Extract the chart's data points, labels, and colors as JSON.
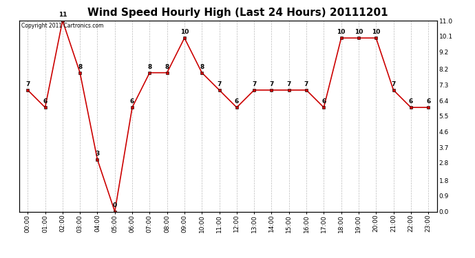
{
  "title": "Wind Speed Hourly High (Last 24 Hours) 20111201",
  "copyright": "Copyright 2011 Cartronics.com",
  "hours": [
    "00:00",
    "01:00",
    "02:00",
    "03:00",
    "04:00",
    "05:00",
    "06:00",
    "07:00",
    "08:00",
    "09:00",
    "10:00",
    "11:00",
    "12:00",
    "13:00",
    "14:00",
    "15:00",
    "16:00",
    "17:00",
    "18:00",
    "19:00",
    "20:00",
    "21:00",
    "22:00",
    "23:00"
  ],
  "values": [
    7,
    6,
    11,
    8,
    3,
    0,
    6,
    8,
    8,
    10,
    8,
    7,
    6,
    7,
    7,
    7,
    7,
    6,
    10,
    10,
    10,
    7,
    6,
    6
  ],
  "line_color": "#cc0000",
  "marker_color": "#cc0000",
  "bg_color": "#ffffff",
  "plot_bg_color": "#ffffff",
  "grid_color": "#bbbbbb",
  "ylim_min": 0.0,
  "ylim_max": 11.0,
  "yticks": [
    0.0,
    0.9,
    1.8,
    2.8,
    3.7,
    4.6,
    5.5,
    6.4,
    7.3,
    8.2,
    9.2,
    10.1,
    11.0
  ],
  "title_fontsize": 11,
  "label_fontsize": 6.5,
  "tick_fontsize": 6.5,
  "copyright_fontsize": 5.5
}
